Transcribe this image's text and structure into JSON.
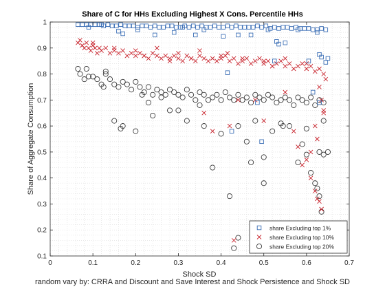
{
  "chart_data": {
    "type": "scatter",
    "title": "Share of C for HHs Excluding Highest X Cons. Percentile HHs",
    "xlabel": "Shock SD",
    "ylabel": "Share of Aggregate Consumption",
    "footnote": "random vary by: CRRA and Discount and Save Interest and Shock Persistence and Shock SD",
    "xlim": [
      0,
      0.7
    ],
    "ylim": [
      0.1,
      1.0
    ],
    "xticks": [
      "0",
      "0.1",
      "0.2",
      "0.3",
      "0.4",
      "0.5",
      "0.6",
      "0.7"
    ],
    "yticks": [
      "0.1",
      "0.2",
      "0.3",
      "0.4",
      "0.5",
      "0.6",
      "0.7",
      "0.8",
      "0.9",
      "1"
    ],
    "grid": "minor dotted",
    "legend_position": "bottom-right",
    "series": [
      {
        "name": "share Excluding top 1%",
        "marker": "square",
        "color": "#3c6fb6",
        "x": [
          0.065,
          0.075,
          0.085,
          0.095,
          0.105,
          0.115,
          0.125,
          0.135,
          0.145,
          0.155,
          0.165,
          0.175,
          0.185,
          0.195,
          0.205,
          0.215,
          0.225,
          0.235,
          0.245,
          0.255,
          0.265,
          0.275,
          0.285,
          0.295,
          0.305,
          0.315,
          0.325,
          0.335,
          0.345,
          0.355,
          0.365,
          0.375,
          0.385,
          0.395,
          0.405,
          0.415,
          0.425,
          0.435,
          0.445,
          0.455,
          0.465,
          0.475,
          0.485,
          0.495,
          0.505,
          0.515,
          0.525,
          0.535,
          0.545,
          0.555,
          0.565,
          0.575,
          0.585,
          0.595,
          0.605,
          0.615,
          0.625,
          0.635,
          0.645,
          0.16,
          0.17,
          0.205,
          0.245,
          0.29,
          0.34,
          0.405,
          0.44,
          0.51,
          0.53,
          0.535,
          0.55,
          0.63,
          0.635,
          0.645,
          0.65,
          0.415,
          0.425,
          0.485,
          0.495,
          0.615,
          0.63,
          0.605,
          0.525,
          0.36,
          0.12,
          0.09,
          0.31,
          0.47,
          0.58,
          0.625
        ],
        "y": [
          0.99,
          0.99,
          0.99,
          0.99,
          0.99,
          0.99,
          0.985,
          0.99,
          0.985,
          0.985,
          0.99,
          0.985,
          0.985,
          0.985,
          0.98,
          0.985,
          0.985,
          0.98,
          0.985,
          0.98,
          0.98,
          0.985,
          0.985,
          0.98,
          0.98,
          0.985,
          0.98,
          0.985,
          0.98,
          0.985,
          0.98,
          0.98,
          0.985,
          0.98,
          0.98,
          0.985,
          0.98,
          0.985,
          0.98,
          0.98,
          0.98,
          0.98,
          0.985,
          0.98,
          0.985,
          0.975,
          0.98,
          0.975,
          0.98,
          0.98,
          0.975,
          0.98,
          0.975,
          0.975,
          0.975,
          0.97,
          0.97,
          0.975,
          0.97,
          0.965,
          0.955,
          0.97,
          0.95,
          0.96,
          0.95,
          0.945,
          0.95,
          0.97,
          0.925,
          0.915,
          0.92,
          0.875,
          0.865,
          0.845,
          0.86,
          0.805,
          0.58,
          0.69,
          0.54,
          0.73,
          0.69,
          0.85,
          0.85,
          0.97,
          0.99,
          0.98,
          0.98,
          0.95,
          0.97,
          0.96
        ]
      },
      {
        "name": "share Excluding top 10%",
        "marker": "x",
        "color": "#c8232c",
        "x": [
          0.065,
          0.07,
          0.075,
          0.08,
          0.085,
          0.09,
          0.095,
          0.1,
          0.105,
          0.11,
          0.115,
          0.12,
          0.13,
          0.14,
          0.15,
          0.16,
          0.17,
          0.18,
          0.19,
          0.2,
          0.21,
          0.22,
          0.23,
          0.24,
          0.25,
          0.26,
          0.27,
          0.28,
          0.29,
          0.3,
          0.31,
          0.32,
          0.33,
          0.34,
          0.35,
          0.36,
          0.37,
          0.38,
          0.39,
          0.4,
          0.41,
          0.42,
          0.43,
          0.44,
          0.45,
          0.46,
          0.47,
          0.48,
          0.49,
          0.5,
          0.51,
          0.52,
          0.53,
          0.54,
          0.55,
          0.56,
          0.57,
          0.58,
          0.59,
          0.6,
          0.61,
          0.62,
          0.63,
          0.64,
          0.1,
          0.15,
          0.2,
          0.25,
          0.3,
          0.35,
          0.4,
          0.45,
          0.5,
          0.55,
          0.6,
          0.63,
          0.635,
          0.64,
          0.62,
          0.625,
          0.61,
          0.6,
          0.59,
          0.58,
          0.57,
          0.415,
          0.42,
          0.43,
          0.5,
          0.52,
          0.61,
          0.62,
          0.625,
          0.63,
          0.635,
          0.64,
          0.645,
          0.48,
          0.55,
          0.38,
          0.36,
          0.44,
          0.22,
          0.28,
          0.33
        ],
        "y": [
          0.92,
          0.93,
          0.91,
          0.9,
          0.92,
          0.9,
          0.89,
          0.91,
          0.9,
          0.88,
          0.9,
          0.89,
          0.9,
          0.88,
          0.89,
          0.88,
          0.89,
          0.87,
          0.88,
          0.87,
          0.88,
          0.87,
          0.86,
          0.88,
          0.87,
          0.86,
          0.87,
          0.86,
          0.87,
          0.86,
          0.85,
          0.87,
          0.86,
          0.85,
          0.87,
          0.86,
          0.85,
          0.86,
          0.85,
          0.86,
          0.87,
          0.85,
          0.86,
          0.84,
          0.85,
          0.86,
          0.84,
          0.85,
          0.86,
          0.84,
          0.85,
          0.83,
          0.84,
          0.85,
          0.83,
          0.84,
          0.82,
          0.83,
          0.84,
          0.82,
          0.83,
          0.81,
          0.82,
          0.8,
          0.92,
          0.9,
          0.89,
          0.9,
          0.88,
          0.89,
          0.87,
          0.86,
          0.85,
          0.86,
          0.84,
          0.75,
          0.7,
          0.65,
          0.6,
          0.55,
          0.5,
          0.47,
          0.45,
          0.52,
          0.58,
          0.88,
          0.6,
          0.16,
          0.62,
          0.83,
          0.4,
          0.35,
          0.32,
          0.31,
          0.28,
          0.66,
          0.78,
          0.7,
          0.73,
          0.58,
          0.65,
          0.7,
          0.87,
          0.85,
          0.86
        ]
      },
      {
        "name": "share Excluding top 20%",
        "marker": "circle",
        "color": "#3a3a3a",
        "x": [
          0.065,
          0.07,
          0.08,
          0.085,
          0.09,
          0.1,
          0.11,
          0.12,
          0.125,
          0.13,
          0.14,
          0.15,
          0.16,
          0.17,
          0.18,
          0.19,
          0.2,
          0.21,
          0.22,
          0.23,
          0.24,
          0.25,
          0.26,
          0.27,
          0.28,
          0.29,
          0.3,
          0.31,
          0.32,
          0.33,
          0.34,
          0.35,
          0.36,
          0.37,
          0.38,
          0.39,
          0.4,
          0.41,
          0.42,
          0.43,
          0.44,
          0.45,
          0.46,
          0.47,
          0.48,
          0.49,
          0.5,
          0.51,
          0.52,
          0.53,
          0.54,
          0.55,
          0.56,
          0.57,
          0.58,
          0.59,
          0.6,
          0.61,
          0.62,
          0.63,
          0.64,
          0.15,
          0.17,
          0.2,
          0.24,
          0.28,
          0.32,
          0.36,
          0.4,
          0.44,
          0.48,
          0.52,
          0.56,
          0.6,
          0.64,
          0.63,
          0.61,
          0.62,
          0.625,
          0.63,
          0.635,
          0.6,
          0.59,
          0.58,
          0.42,
          0.43,
          0.44,
          0.47,
          0.5,
          0.54,
          0.545,
          0.38,
          0.35,
          0.26,
          0.23,
          0.13,
          0.165,
          0.215,
          0.3,
          0.46,
          0.5,
          0.64,
          0.65
        ],
        "y": [
          0.82,
          0.8,
          0.78,
          0.82,
          0.79,
          0.79,
          0.78,
          0.76,
          0.75,
          0.8,
          0.78,
          0.76,
          0.75,
          0.77,
          0.76,
          0.74,
          0.77,
          0.75,
          0.73,
          0.75,
          0.72,
          0.74,
          0.73,
          0.72,
          0.74,
          0.73,
          0.72,
          0.71,
          0.74,
          0.72,
          0.7,
          0.73,
          0.72,
          0.7,
          0.71,
          0.72,
          0.7,
          0.73,
          0.71,
          0.7,
          0.72,
          0.7,
          0.71,
          0.69,
          0.72,
          0.71,
          0.7,
          0.72,
          0.71,
          0.69,
          0.7,
          0.71,
          0.7,
          0.68,
          0.71,
          0.7,
          0.69,
          0.71,
          0.68,
          0.7,
          0.69,
          0.62,
          0.6,
          0.58,
          0.64,
          0.66,
          0.62,
          0.6,
          0.57,
          0.6,
          0.62,
          0.58,
          0.6,
          0.59,
          0.62,
          0.5,
          0.42,
          0.38,
          0.36,
          0.33,
          0.27,
          0.49,
          0.53,
          0.46,
          0.33,
          0.13,
          0.17,
          0.46,
          0.48,
          0.61,
          0.6,
          0.44,
          0.68,
          0.71,
          0.69,
          0.81,
          0.59,
          0.72,
          0.66,
          0.54,
          0.38,
          0.49,
          0.5
        ]
      }
    ]
  }
}
